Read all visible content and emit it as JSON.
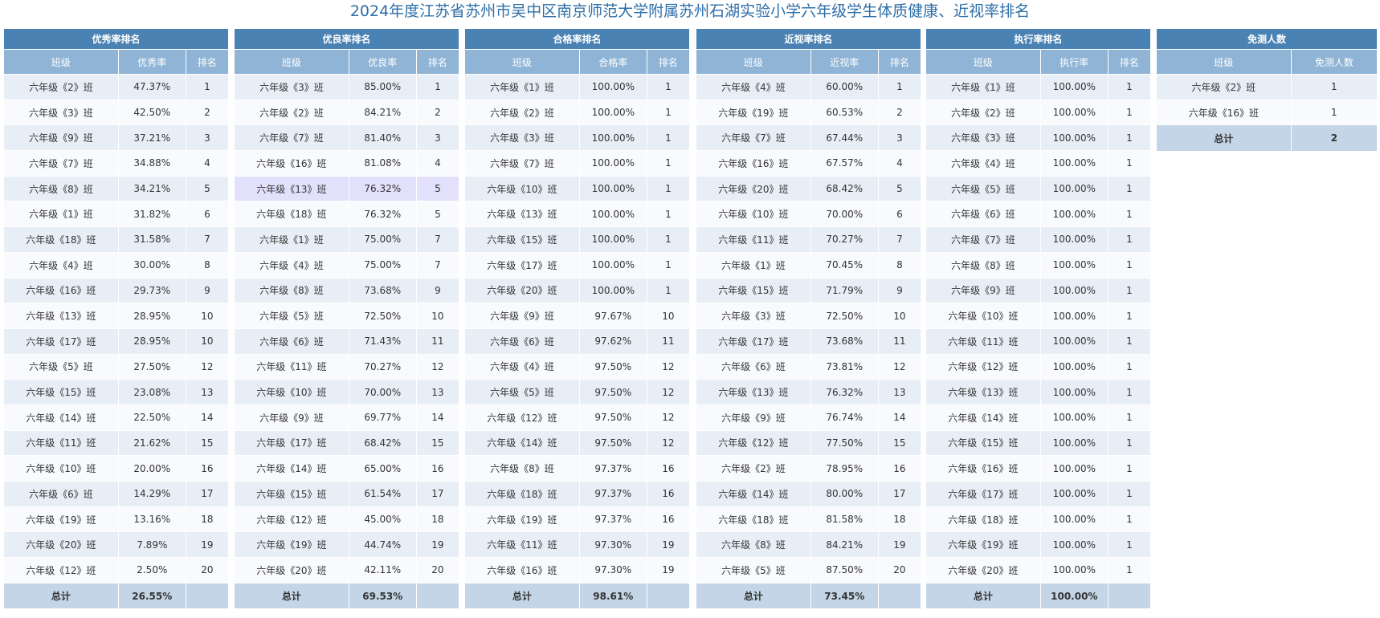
{
  "title": "2024年度江苏省苏州市吴中区南京师范大学附属苏州石湖实验小学六年级学生体质健康、近视率排名",
  "tables": [
    {
      "title": "优秀率排名",
      "columns": [
        "班级",
        "优秀率",
        "排名"
      ],
      "rows": [
        [
          "六年级《2》班",
          "47.37%",
          "1"
        ],
        [
          "六年级《3》班",
          "42.50%",
          "2"
        ],
        [
          "六年级《9》班",
          "37.21%",
          "3"
        ],
        [
          "六年级《7》班",
          "34.88%",
          "4"
        ],
        [
          "六年级《8》班",
          "34.21%",
          "5"
        ],
        [
          "六年级《1》班",
          "31.82%",
          "6"
        ],
        [
          "六年级《18》班",
          "31.58%",
          "7"
        ],
        [
          "六年级《4》班",
          "30.00%",
          "8"
        ],
        [
          "六年级《16》班",
          "29.73%",
          "9"
        ],
        [
          "六年级《13》班",
          "28.95%",
          "10"
        ],
        [
          "六年级《17》班",
          "28.95%",
          "10"
        ],
        [
          "六年级《5》班",
          "27.50%",
          "12"
        ],
        [
          "六年级《15》班",
          "23.08%",
          "13"
        ],
        [
          "六年级《14》班",
          "22.50%",
          "14"
        ],
        [
          "六年级《11》班",
          "21.62%",
          "15"
        ],
        [
          "六年级《10》班",
          "20.00%",
          "16"
        ],
        [
          "六年级《6》班",
          "14.29%",
          "17"
        ],
        [
          "六年级《19》班",
          "13.16%",
          "18"
        ],
        [
          "六年级《20》班",
          "7.89%",
          "19"
        ],
        [
          "六年级《12》班",
          "2.50%",
          "20"
        ]
      ],
      "total": [
        "总计",
        "26.55%"
      ]
    },
    {
      "title": "优良率排名",
      "columns": [
        "班级",
        "优良率",
        "排名"
      ],
      "rows": [
        [
          "六年级《3》班",
          "85.00%",
          "1"
        ],
        [
          "六年级《2》班",
          "84.21%",
          "2"
        ],
        [
          "六年级《7》班",
          "81.40%",
          "3"
        ],
        [
          "六年级《16》班",
          "81.08%",
          "4"
        ],
        [
          "六年级《13》班",
          "76.32%",
          "5"
        ],
        [
          "六年级《18》班",
          "76.32%",
          "5"
        ],
        [
          "六年级《1》班",
          "75.00%",
          "7"
        ],
        [
          "六年级《4》班",
          "75.00%",
          "7"
        ],
        [
          "六年级《8》班",
          "73.68%",
          "9"
        ],
        [
          "六年级《5》班",
          "72.50%",
          "10"
        ],
        [
          "六年级《6》班",
          "71.43%",
          "11"
        ],
        [
          "六年级《11》班",
          "70.27%",
          "12"
        ],
        [
          "六年级《10》班",
          "70.00%",
          "13"
        ],
        [
          "六年级《9》班",
          "69.77%",
          "14"
        ],
        [
          "六年级《17》班",
          "68.42%",
          "15"
        ],
        [
          "六年级《14》班",
          "65.00%",
          "16"
        ],
        [
          "六年级《15》班",
          "61.54%",
          "17"
        ],
        [
          "六年级《12》班",
          "45.00%",
          "18"
        ],
        [
          "六年级《19》班",
          "44.74%",
          "19"
        ],
        [
          "六年级《20》班",
          "42.11%",
          "20"
        ]
      ],
      "total": [
        "总计",
        "69.53%"
      ]
    },
    {
      "title": "合格率排名",
      "columns": [
        "班级",
        "合格率",
        "排名"
      ],
      "rows": [
        [
          "六年级《1》班",
          "100.00%",
          "1"
        ],
        [
          "六年级《2》班",
          "100.00%",
          "1"
        ],
        [
          "六年级《3》班",
          "100.00%",
          "1"
        ],
        [
          "六年级《7》班",
          "100.00%",
          "1"
        ],
        [
          "六年级《10》班",
          "100.00%",
          "1"
        ],
        [
          "六年级《13》班",
          "100.00%",
          "1"
        ],
        [
          "六年级《15》班",
          "100.00%",
          "1"
        ],
        [
          "六年级《17》班",
          "100.00%",
          "1"
        ],
        [
          "六年级《20》班",
          "100.00%",
          "1"
        ],
        [
          "六年级《9》班",
          "97.67%",
          "10"
        ],
        [
          "六年级《6》班",
          "97.62%",
          "11"
        ],
        [
          "六年级《4》班",
          "97.50%",
          "12"
        ],
        [
          "六年级《5》班",
          "97.50%",
          "12"
        ],
        [
          "六年级《12》班",
          "97.50%",
          "12"
        ],
        [
          "六年级《14》班",
          "97.50%",
          "12"
        ],
        [
          "六年级《8》班",
          "97.37%",
          "16"
        ],
        [
          "六年级《18》班",
          "97.37%",
          "16"
        ],
        [
          "六年级《19》班",
          "97.37%",
          "16"
        ],
        [
          "六年级《11》班",
          "97.30%",
          "19"
        ],
        [
          "六年级《16》班",
          "97.30%",
          "19"
        ]
      ],
      "total": [
        "总计",
        "98.61%"
      ]
    },
    {
      "title": "近视率排名",
      "columns": [
        "班级",
        "近视率",
        "排名"
      ],
      "rows": [
        [
          "六年级《4》班",
          "60.00%",
          "1"
        ],
        [
          "六年级《19》班",
          "60.53%",
          "2"
        ],
        [
          "六年级《7》班",
          "67.44%",
          "3"
        ],
        [
          "六年级《16》班",
          "67.57%",
          "4"
        ],
        [
          "六年级《20》班",
          "68.42%",
          "5"
        ],
        [
          "六年级《10》班",
          "70.00%",
          "6"
        ],
        [
          "六年级《11》班",
          "70.27%",
          "7"
        ],
        [
          "六年级《1》班",
          "70.45%",
          "8"
        ],
        [
          "六年级《15》班",
          "71.79%",
          "9"
        ],
        [
          "六年级《3》班",
          "72.50%",
          "10"
        ],
        [
          "六年级《17》班",
          "73.68%",
          "11"
        ],
        [
          "六年级《6》班",
          "73.81%",
          "12"
        ],
        [
          "六年级《13》班",
          "76.32%",
          "13"
        ],
        [
          "六年级《9》班",
          "76.74%",
          "14"
        ],
        [
          "六年级《12》班",
          "77.50%",
          "15"
        ],
        [
          "六年级《2》班",
          "78.95%",
          "16"
        ],
        [
          "六年级《14》班",
          "80.00%",
          "17"
        ],
        [
          "六年级《18》班",
          "81.58%",
          "18"
        ],
        [
          "六年级《8》班",
          "84.21%",
          "19"
        ],
        [
          "六年级《5》班",
          "87.50%",
          "20"
        ]
      ],
      "total": [
        "总计",
        "73.45%"
      ]
    },
    {
      "title": "执行率排名",
      "columns": [
        "班级",
        "执行率",
        "排名"
      ],
      "rows": [
        [
          "六年级《1》班",
          "100.00%",
          "1"
        ],
        [
          "六年级《2》班",
          "100.00%",
          "1"
        ],
        [
          "六年级《3》班",
          "100.00%",
          "1"
        ],
        [
          "六年级《4》班",
          "100.00%",
          "1"
        ],
        [
          "六年级《5》班",
          "100.00%",
          "1"
        ],
        [
          "六年级《6》班",
          "100.00%",
          "1"
        ],
        [
          "六年级《7》班",
          "100.00%",
          "1"
        ],
        [
          "六年级《8》班",
          "100.00%",
          "1"
        ],
        [
          "六年级《9》班",
          "100.00%",
          "1"
        ],
        [
          "六年级《10》班",
          "100.00%",
          "1"
        ],
        [
          "六年级《11》班",
          "100.00%",
          "1"
        ],
        [
          "六年级《12》班",
          "100.00%",
          "1"
        ],
        [
          "六年级《13》班",
          "100.00%",
          "1"
        ],
        [
          "六年级《14》班",
          "100.00%",
          "1"
        ],
        [
          "六年级《15》班",
          "100.00%",
          "1"
        ],
        [
          "六年级《16》班",
          "100.00%",
          "1"
        ],
        [
          "六年级《17》班",
          "100.00%",
          "1"
        ],
        [
          "六年级《18》班",
          "100.00%",
          "1"
        ],
        [
          "六年级《19》班",
          "100.00%",
          "1"
        ],
        [
          "六年级《20》班",
          "100.00%",
          "1"
        ]
      ],
      "total": [
        "总计",
        "100.00%"
      ]
    },
    {
      "title": "免测人数",
      "columns": [
        "班级",
        "免测人数"
      ],
      "rows": [
        [
          "六年级《2》班",
          "1"
        ],
        [
          "六年级《16》班",
          "1"
        ]
      ],
      "total": [
        "总计",
        "2"
      ]
    }
  ]
}
